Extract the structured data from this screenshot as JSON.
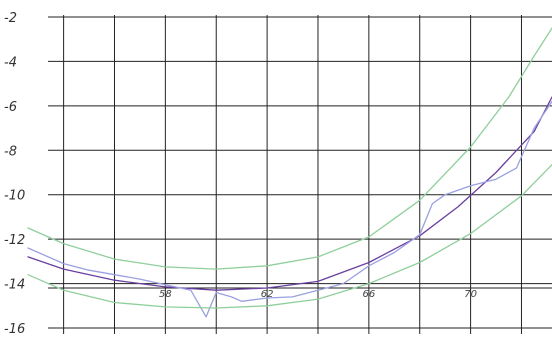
{
  "chart_data": {
    "type": "line",
    "title": "",
    "xlabel": "",
    "ylabel": "",
    "xlim": [
      52.6,
      73.2
    ],
    "ylim": [
      -16,
      -2
    ],
    "yticks": [
      -2,
      -4,
      -6,
      -8,
      -10,
      -12,
      -14,
      -16
    ],
    "ytick_labels": [
      "-2",
      "-4",
      "-6",
      "-8",
      "-10",
      "-12",
      "-14",
      "-16"
    ],
    "xticks": [
      58,
      62,
      66,
      70
    ],
    "xtick_labels": [
      "58",
      "62",
      "66",
      "70"
    ],
    "grid": true,
    "legend": "none",
    "reference_lines": [
      -14.2
    ],
    "series": [
      {
        "color": "#6a3fa0",
        "x": [
          52.6,
          54,
          56,
          58,
          60,
          62,
          64,
          66,
          68,
          69.5,
          71,
          72.5,
          73.2
        ],
        "y": [
          -12.8,
          -13.35,
          -13.85,
          -14.15,
          -14.3,
          -14.2,
          -13.9,
          -13.05,
          -11.85,
          -10.55,
          -9.0,
          -7.15,
          -5.6
        ]
      },
      {
        "color": "#9aa0e0",
        "x": [
          52.6,
          54,
          55,
          56,
          57,
          58,
          59,
          59.6,
          60,
          60.6,
          61,
          62,
          63,
          64,
          65,
          66,
          67,
          68,
          68.5,
          69,
          70,
          71,
          71.8,
          72.5,
          73.2
        ],
        "y": [
          -12.4,
          -13.1,
          -13.4,
          -13.6,
          -13.8,
          -14.05,
          -14.3,
          -15.5,
          -14.4,
          -14.6,
          -14.8,
          -14.65,
          -14.6,
          -14.3,
          -14.0,
          -13.2,
          -12.6,
          -11.8,
          -10.4,
          -10.0,
          -9.6,
          -9.3,
          -8.8,
          -7.0,
          -5.8
        ]
      },
      {
        "color": "#8fcf9b",
        "x": [
          52.6,
          54,
          56,
          58,
          60,
          62,
          64,
          66,
          68,
          70,
          71.5,
          72.5,
          73.2
        ],
        "y": [
          -11.5,
          -12.2,
          -12.9,
          -13.25,
          -13.35,
          -13.2,
          -12.8,
          -11.9,
          -10.25,
          -7.85,
          -5.6,
          -3.75,
          -2.5
        ]
      },
      {
        "color": "#8fcf9b",
        "x": [
          52.6,
          54,
          56,
          58,
          60,
          62,
          64,
          66,
          68,
          70,
          72,
          73.2
        ],
        "y": [
          -13.6,
          -14.3,
          -14.85,
          -15.05,
          -15.1,
          -15.0,
          -14.7,
          -14.0,
          -13.05,
          -11.75,
          -10.05,
          -8.65
        ]
      }
    ]
  }
}
